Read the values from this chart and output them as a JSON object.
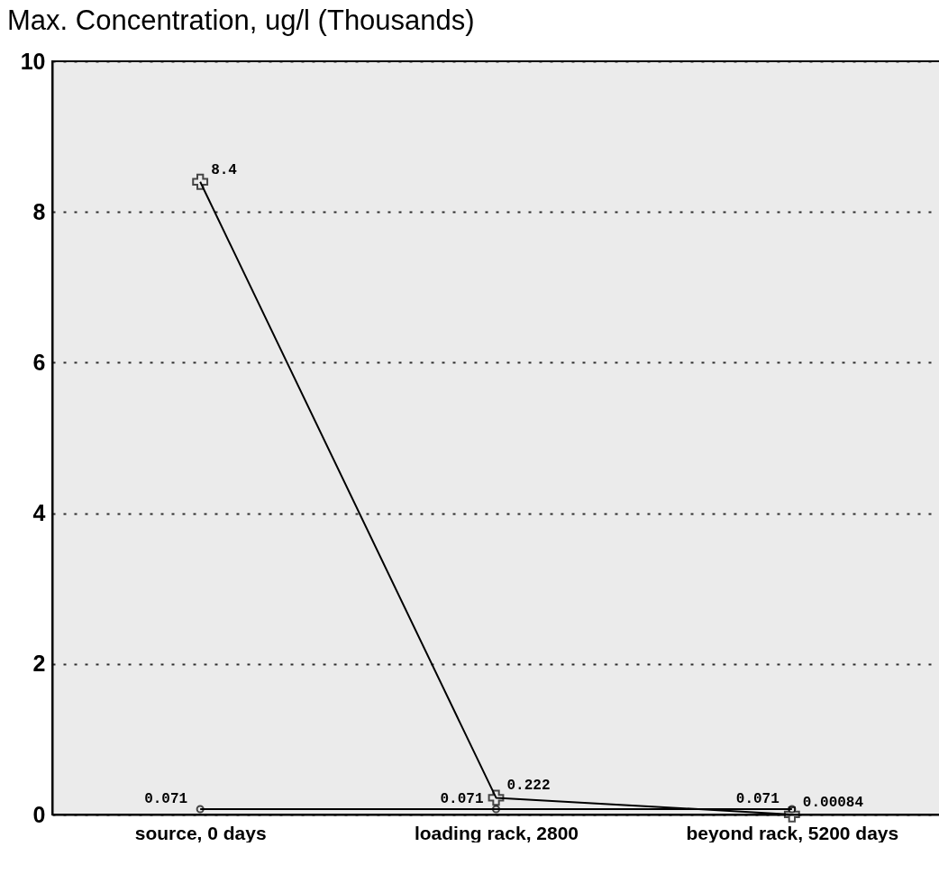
{
  "chart_data": {
    "type": "line",
    "title": "Max. Concentration, ug/l (Thousands)",
    "categories": [
      "source, 0 days",
      "loading rack, 2800",
      "beyond rack, 5200 days"
    ],
    "series": [
      {
        "color": "#000000",
        "marker": "cross",
        "values": [
          8.4,
          0.222,
          0.00084
        ]
      },
      {
        "color": "#000000",
        "marker": "circle",
        "values": [
          0.071,
          0.071,
          0.071
        ]
      }
    ],
    "ylim": [
      0,
      10
    ],
    "yticks": [
      0,
      2,
      4,
      6,
      8,
      10
    ],
    "grid": "y",
    "legend": false,
    "data_labels": true
  }
}
